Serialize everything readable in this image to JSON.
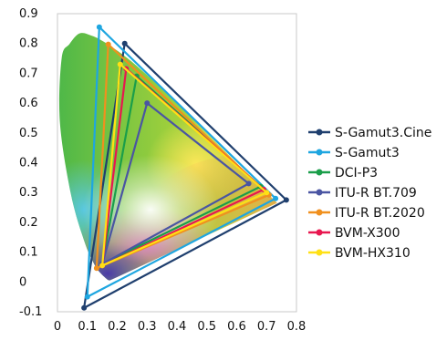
{
  "chart_data": {
    "type": "line",
    "subtype": "CIE 1931 chromaticity diagram with color gamut triangles",
    "title": "",
    "xlabel": "",
    "ylabel": "",
    "xlim": [
      0,
      0.8
    ],
    "ylim": [
      -0.1,
      0.9
    ],
    "x_ticks": [
      "0",
      "0.1",
      "0.2",
      "0.3",
      "0.4",
      "0.5",
      "0.6",
      "0.7",
      "0.8"
    ],
    "y_ticks": [
      "-0.1",
      "0",
      "0.1",
      "0.2",
      "0.3",
      "0.4",
      "0.5",
      "0.6",
      "0.7",
      "0.8",
      "0.9"
    ],
    "legend_position": "right",
    "grid": false,
    "spectral_locus": [
      [
        0.175,
        0.005
      ],
      [
        0.166,
        0.009
      ],
      [
        0.144,
        0.03
      ],
      [
        0.124,
        0.058
      ],
      [
        0.091,
        0.133
      ],
      [
        0.045,
        0.295
      ],
      [
        0.008,
        0.538
      ],
      [
        0.014,
        0.75
      ],
      [
        0.04,
        0.798
      ],
      [
        0.074,
        0.834
      ],
      [
        0.115,
        0.826
      ],
      [
        0.155,
        0.806
      ],
      [
        0.23,
        0.754
      ],
      [
        0.302,
        0.692
      ],
      [
        0.373,
        0.624
      ],
      [
        0.444,
        0.555
      ],
      [
        0.512,
        0.487
      ],
      [
        0.575,
        0.424
      ],
      [
        0.627,
        0.372
      ],
      [
        0.666,
        0.334
      ],
      [
        0.735,
        0.265
      ]
    ],
    "series": [
      {
        "name": "S-Gamut3.Cine",
        "color": "#1f3f6e",
        "x": [
          0.766,
          0.225,
          0.089,
          0.766
        ],
        "y": [
          0.275,
          0.8,
          -0.087,
          0.275
        ]
      },
      {
        "name": "S-Gamut3",
        "color": "#1ea6e0",
        "x": [
          0.73,
          0.14,
          0.1,
          0.73
        ],
        "y": [
          0.28,
          0.855,
          -0.05,
          0.28
        ]
      },
      {
        "name": "DCI-P3",
        "color": "#1a9e4a",
        "x": [
          0.68,
          0.265,
          0.15,
          0.68
        ],
        "y": [
          0.32,
          0.69,
          0.06,
          0.32
        ]
      },
      {
        "name": "ITU-R BT.709",
        "color": "#4a55a2",
        "x": [
          0.64,
          0.3,
          0.15,
          0.64
        ],
        "y": [
          0.33,
          0.6,
          0.06,
          0.33
        ]
      },
      {
        "name": "ITU-R BT.2020",
        "color": "#f0901e",
        "x": [
          0.708,
          0.17,
          0.131,
          0.708
        ],
        "y": [
          0.292,
          0.797,
          0.046,
          0.292
        ]
      },
      {
        "name": "BVM-X300",
        "color": "#e8174f",
        "x": [
          0.69,
          0.23,
          0.15,
          0.69
        ],
        "y": [
          0.31,
          0.715,
          0.055,
          0.31
        ]
      },
      {
        "name": "BVM-HX310",
        "color": "#ffe014",
        "x": [
          0.7,
          0.21,
          0.15,
          0.7
        ],
        "y": [
          0.3,
          0.73,
          0.055,
          0.3
        ]
      }
    ]
  }
}
